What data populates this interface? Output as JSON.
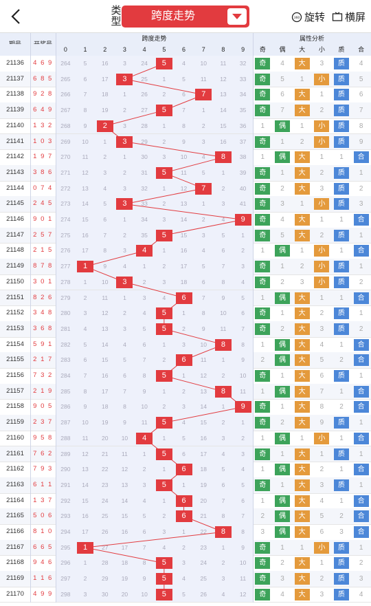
{
  "header": {
    "type_label": "类型",
    "selector_label": "跨度走势",
    "rotate_label": "旋转",
    "landscape_label": "横屏"
  },
  "table": {
    "col_issue": "期号",
    "col_num": "开奖号",
    "group_trend": "跨度走势",
    "group_attr": "属性分析",
    "digits": [
      "0",
      "1",
      "2",
      "3",
      "4",
      "5",
      "6",
      "7",
      "8",
      "9"
    ],
    "attr_headers": [
      "奇",
      "偶",
      "大",
      "小",
      "质",
      "合"
    ],
    "rows": [
      {
        "issue": "21136",
        "num": "4 6 9",
        "span": 5,
        "miss": [
          "264",
          "5",
          "16",
          "3",
          "24",
          "",
          "4",
          "10",
          "11",
          "32"
        ],
        "attr": [
          "奇",
          "4",
          "大",
          "3",
          "质",
          "4"
        ]
      },
      {
        "issue": "21137",
        "num": "6 8 5",
        "span": 3,
        "miss": [
          "265",
          "6",
          "17",
          "",
          "25",
          "1",
          "5",
          "11",
          "12",
          "33"
        ],
        "attr": [
          "奇",
          "5",
          "1",
          "小",
          "质",
          "5"
        ]
      },
      {
        "issue": "21138",
        "num": "9 2 8",
        "span": 7,
        "miss": [
          "266",
          "7",
          "18",
          "1",
          "26",
          "2",
          "6",
          "",
          "13",
          "34"
        ],
        "attr": [
          "奇",
          "6",
          "大",
          "1",
          "质",
          "6"
        ]
      },
      {
        "issue": "21139",
        "num": "6 4 9",
        "span": 5,
        "miss": [
          "267",
          "8",
          "19",
          "2",
          "27",
          "",
          "7",
          "1",
          "14",
          "35"
        ],
        "attr": [
          "奇",
          "7",
          "大",
          "2",
          "质",
          "7"
        ]
      },
      {
        "issue": "21140",
        "num": "1 3 2",
        "span": 2,
        "miss": [
          "268",
          "9",
          "",
          "3",
          "28",
          "1",
          "8",
          "2",
          "15",
          "36"
        ],
        "attr": [
          "1",
          "偶",
          "1",
          "小",
          "质",
          "8"
        ]
      },
      {
        "issue": "21141",
        "num": "1 0 3",
        "span": 3,
        "miss": [
          "269",
          "10",
          "1",
          "",
          "29",
          "2",
          "9",
          "3",
          "16",
          "37"
        ],
        "attr": [
          "奇",
          "1",
          "2",
          "小",
          "质",
          "9"
        ]
      },
      {
        "issue": "21142",
        "num": "1 9 7",
        "span": 8,
        "miss": [
          "270",
          "11",
          "2",
          "1",
          "30",
          "3",
          "10",
          "4",
          "",
          "38"
        ],
        "attr": [
          "1",
          "偶",
          "大",
          "1",
          "1",
          "合"
        ]
      },
      {
        "issue": "21143",
        "num": "3 8 6",
        "span": 5,
        "miss": [
          "271",
          "12",
          "3",
          "2",
          "31",
          "",
          "11",
          "5",
          "1",
          "39"
        ],
        "attr": [
          "奇",
          "1",
          "大",
          "2",
          "质",
          "1"
        ]
      },
      {
        "issue": "21144",
        "num": "0 7 4",
        "span": 7,
        "miss": [
          "272",
          "13",
          "4",
          "3",
          "32",
          "1",
          "12",
          "",
          "2",
          "40"
        ],
        "attr": [
          "奇",
          "2",
          "大",
          "3",
          "质",
          "2"
        ]
      },
      {
        "issue": "21145",
        "num": "2 4 5",
        "span": 3,
        "miss": [
          "273",
          "14",
          "5",
          "",
          "33",
          "2",
          "13",
          "1",
          "3",
          "41"
        ],
        "attr": [
          "奇",
          "3",
          "1",
          "小",
          "质",
          "3"
        ]
      },
      {
        "issue": "21146",
        "num": "9 0 1",
        "span": 9,
        "miss": [
          "274",
          "15",
          "6",
          "1",
          "34",
          "3",
          "14",
          "2",
          "4",
          ""
        ],
        "attr": [
          "奇",
          "4",
          "大",
          "1",
          "1",
          "合"
        ]
      },
      {
        "issue": "21147",
        "num": "2 5 7",
        "span": 5,
        "miss": [
          "275",
          "16",
          "7",
          "2",
          "35",
          "",
          "15",
          "3",
          "5",
          "1"
        ],
        "attr": [
          "奇",
          "5",
          "大",
          "2",
          "质",
          "1"
        ]
      },
      {
        "issue": "21148",
        "num": "2 1 5",
        "span": 4,
        "miss": [
          "276",
          "17",
          "8",
          "3",
          "",
          "1",
          "16",
          "4",
          "6",
          "2"
        ],
        "attr": [
          "1",
          "偶",
          "1",
          "小",
          "1",
          "合"
        ]
      },
      {
        "issue": "21149",
        "num": "8 7 8",
        "span": 1,
        "miss": [
          "277",
          "",
          "9",
          "4",
          "1",
          "2",
          "17",
          "5",
          "7",
          "3"
        ],
        "attr": [
          "奇",
          "1",
          "2",
          "小",
          "质",
          "1"
        ]
      },
      {
        "issue": "21150",
        "num": "3 0 1",
        "span": 3,
        "miss": [
          "278",
          "1",
          "10",
          "",
          "2",
          "3",
          "18",
          "6",
          "8",
          "4"
        ],
        "attr": [
          "奇",
          "2",
          "3",
          "小",
          "质",
          "2"
        ]
      },
      {
        "issue": "21151",
        "num": "8 2 6",
        "span": 6,
        "miss": [
          "279",
          "2",
          "11",
          "1",
          "3",
          "4",
          "",
          "7",
          "9",
          "5"
        ],
        "attr": [
          "1",
          "偶",
          "大",
          "1",
          "1",
          "合"
        ]
      },
      {
        "issue": "21152",
        "num": "3 4 8",
        "span": 5,
        "miss": [
          "280",
          "3",
          "12",
          "2",
          "4",
          "",
          "1",
          "8",
          "10",
          "6"
        ],
        "attr": [
          "奇",
          "1",
          "大",
          "2",
          "质",
          "1"
        ]
      },
      {
        "issue": "21153",
        "num": "3 6 8",
        "span": 5,
        "miss": [
          "281",
          "4",
          "13",
          "3",
          "5",
          "",
          "2",
          "9",
          "11",
          "7"
        ],
        "attr": [
          "奇",
          "2",
          "大",
          "3",
          "质",
          "2"
        ]
      },
      {
        "issue": "21154",
        "num": "5 9 1",
        "span": 8,
        "miss": [
          "282",
          "5",
          "14",
          "4",
          "6",
          "1",
          "3",
          "10",
          "",
          "8"
        ],
        "attr": [
          "1",
          "偶",
          "大",
          "4",
          "1",
          "合"
        ]
      },
      {
        "issue": "21155",
        "num": "2 1 7",
        "span": 6,
        "miss": [
          "283",
          "6",
          "15",
          "5",
          "7",
          "2",
          "",
          "11",
          "1",
          "9"
        ],
        "attr": [
          "2",
          "偶",
          "大",
          "5",
          "2",
          "合"
        ]
      },
      {
        "issue": "21156",
        "num": "7 3 2",
        "span": 5,
        "miss": [
          "284",
          "7",
          "16",
          "6",
          "8",
          "",
          "1",
          "12",
          "2",
          "10"
        ],
        "attr": [
          "奇",
          "1",
          "大",
          "6",
          "质",
          "1"
        ]
      },
      {
        "issue": "21157",
        "num": "2 1 9",
        "span": 8,
        "miss": [
          "285",
          "8",
          "17",
          "7",
          "9",
          "1",
          "2",
          "13",
          "",
          "11"
        ],
        "attr": [
          "1",
          "偶",
          "大",
          "7",
          "1",
          "合"
        ]
      },
      {
        "issue": "21158",
        "num": "9 0 5",
        "span": 9,
        "miss": [
          "286",
          "9",
          "18",
          "8",
          "10",
          "2",
          "3",
          "14",
          "1",
          ""
        ],
        "attr": [
          "奇",
          "1",
          "大",
          "8",
          "2",
          "合"
        ]
      },
      {
        "issue": "21159",
        "num": "2 3 7",
        "span": 5,
        "miss": [
          "287",
          "10",
          "19",
          "9",
          "11",
          "",
          "4",
          "15",
          "2",
          "1"
        ],
        "attr": [
          "奇",
          "2",
          "大",
          "9",
          "质",
          "1"
        ]
      },
      {
        "issue": "21160",
        "num": "9 5 8",
        "span": 4,
        "miss": [
          "288",
          "11",
          "20",
          "10",
          "",
          "1",
          "5",
          "16",
          "3",
          "2"
        ],
        "attr": [
          "1",
          "偶",
          "1",
          "小",
          "1",
          "合"
        ]
      },
      {
        "issue": "21161",
        "num": "7 6 2",
        "span": 5,
        "miss": [
          "289",
          "12",
          "21",
          "11",
          "1",
          "",
          "6",
          "17",
          "4",
          "3"
        ],
        "attr": [
          "奇",
          "1",
          "大",
          "1",
          "质",
          "1"
        ]
      },
      {
        "issue": "21162",
        "num": "7 9 3",
        "span": 6,
        "miss": [
          "290",
          "13",
          "22",
          "12",
          "2",
          "1",
          "",
          "18",
          "5",
          "4"
        ],
        "attr": [
          "1",
          "偶",
          "大",
          "2",
          "1",
          "合"
        ]
      },
      {
        "issue": "21163",
        "num": "6 1 1",
        "span": 5,
        "miss": [
          "291",
          "14",
          "23",
          "13",
          "3",
          "",
          "1",
          "19",
          "6",
          "5"
        ],
        "attr": [
          "奇",
          "1",
          "大",
          "3",
          "质",
          "1"
        ]
      },
      {
        "issue": "21164",
        "num": "1 3 7",
        "span": 6,
        "miss": [
          "292",
          "15",
          "24",
          "14",
          "4",
          "1",
          "",
          "20",
          "7",
          "6"
        ],
        "attr": [
          "1",
          "偶",
          "大",
          "4",
          "1",
          "合"
        ]
      },
      {
        "issue": "21165",
        "num": "5 0 6",
        "span": 6,
        "miss": [
          "293",
          "16",
          "25",
          "15",
          "5",
          "2",
          "",
          "21",
          "8",
          "7"
        ],
        "attr": [
          "2",
          "偶",
          "大",
          "5",
          "2",
          "合"
        ]
      },
      {
        "issue": "21166",
        "num": "8 1 0",
        "span": 8,
        "miss": [
          "294",
          "17",
          "26",
          "16",
          "6",
          "3",
          "1",
          "22",
          "",
          "8"
        ],
        "attr": [
          "3",
          "偶",
          "大",
          "6",
          "3",
          "合"
        ]
      },
      {
        "issue": "21167",
        "num": "6 6 5",
        "span": 1,
        "miss": [
          "295",
          "",
          "27",
          "17",
          "7",
          "4",
          "2",
          "23",
          "1",
          "9"
        ],
        "attr": [
          "奇",
          "1",
          "1",
          "小",
          "质",
          "1"
        ]
      },
      {
        "issue": "21168",
        "num": "9 4 6",
        "span": 5,
        "miss": [
          "296",
          "1",
          "28",
          "18",
          "8",
          "",
          "3",
          "24",
          "2",
          "10"
        ],
        "attr": [
          "奇",
          "2",
          "大",
          "1",
          "质",
          "2"
        ]
      },
      {
        "issue": "21169",
        "num": "1 1 6",
        "span": 5,
        "miss": [
          "297",
          "2",
          "29",
          "19",
          "9",
          "",
          "4",
          "25",
          "3",
          "11"
        ],
        "attr": [
          "奇",
          "3",
          "大",
          "2",
          "质",
          "3"
        ]
      },
      {
        "issue": "21170",
        "num": "4 9 9",
        "span": 5,
        "miss": [
          "298",
          "3",
          "30",
          "20",
          "10",
          "",
          "5",
          "26",
          "4",
          "12"
        ],
        "attr": [
          "奇",
          "4",
          "大",
          "3",
          "质",
          "4"
        ]
      }
    ]
  },
  "colors": {
    "accent": "#e23b3f",
    "odd": "#3da35a",
    "big": "#e49a3c",
    "prime": "#4c87d8"
  }
}
